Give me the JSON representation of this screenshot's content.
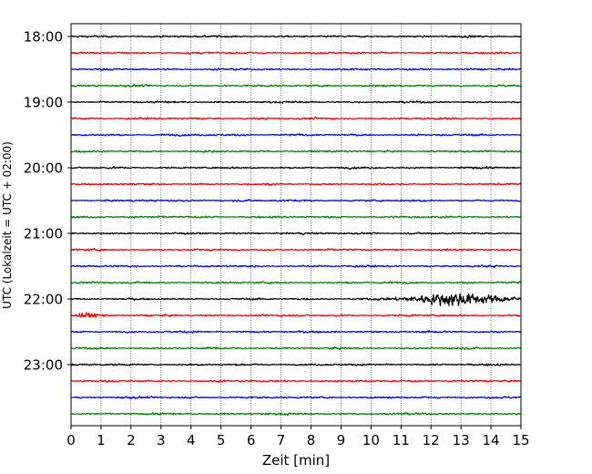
{
  "chart_data": {
    "type": "line",
    "title": "",
    "xlabel": "Zeit  [min]",
    "ylabel": "UTC (Lokalzeit = UTC + 02:00)",
    "xlim": [
      0,
      15
    ],
    "x_ticks": [
      0,
      1,
      2,
      3,
      4,
      5,
      6,
      7,
      8,
      9,
      10,
      11,
      12,
      13,
      14,
      15
    ],
    "y_tick_labels": [
      "18:00",
      "19:00",
      "20:00",
      "21:00",
      "22:00",
      "23:00"
    ],
    "traces_per_hour": 4,
    "minutes_per_trace": 15,
    "start_time": "18:00",
    "trace_count": 24,
    "trace_colors": [
      "#000000",
      "#ff0000",
      "#0000ff",
      "#007f00"
    ],
    "grid": "vertical-dotted",
    "events": [
      {
        "trace": 16,
        "start_min": 9.6,
        "peak_min": 12.9,
        "end_min": 15,
        "peak_amplitude": 4.5
      },
      {
        "trace": 17,
        "start_min": 0,
        "peak_min": 0.4,
        "end_min": 1.2,
        "peak_amplitude": 1.6
      }
    ]
  }
}
